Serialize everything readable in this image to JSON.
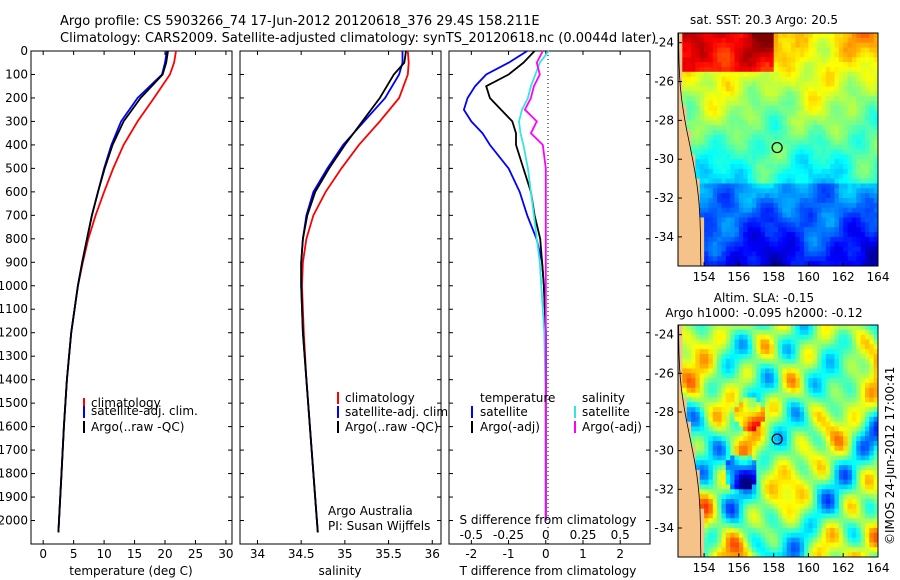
{
  "header": {
    "line1": "Argo profile: CS 5903266_74 17-Jun-2012 20120618_376 29.4S 158.211E",
    "line2": "Climatology: CARS2009. Satellite-adjusted climatology: synTS_20120618.nc (0.0044d later)"
  },
  "colors": {
    "climatology": "#ff0000",
    "satellite": "#0000ff",
    "argo": "#000000",
    "salinity_satellite": "#33e6e6",
    "salinity_argo": "#ff00ff"
  },
  "chart_data": [
    {
      "type": "line",
      "name": "temperature",
      "xlabel": "temperature (deg C)",
      "ylabel": "",
      "xlim": [
        -2,
        31
      ],
      "ylim": [
        2100,
        0
      ],
      "xticks": [
        "0",
        "5",
        "10",
        "15",
        "20",
        "25",
        "30"
      ],
      "yticks": [
        "0",
        "100",
        "200",
        "300",
        "400",
        "500",
        "600",
        "700",
        "800",
        "900",
        "1000",
        "1100",
        "1200",
        "1300",
        "1400",
        "1500",
        "1600",
        "1700",
        "1800",
        "1900",
        "2000"
      ],
      "legend": [
        "climatology",
        "satellite-adj. clim.",
        "Argo(..raw -QC)"
      ],
      "series": [
        {
          "name": "climatology",
          "depth": [
            0,
            50,
            100,
            200,
            300,
            400,
            500,
            600,
            700,
            800,
            900,
            1000,
            1200,
            1400,
            1600,
            1800,
            2000,
            2050
          ],
          "values": [
            21.8,
            21.5,
            20.8,
            18.2,
            15.5,
            13.2,
            11.5,
            10.0,
            8.6,
            7.4,
            6.5,
            5.7,
            4.6,
            3.9,
            3.4,
            3.0,
            2.6,
            2.5
          ]
        },
        {
          "name": "satellite-adj. clim.",
          "depth": [
            0,
            50,
            100,
            200,
            300,
            400,
            500,
            600,
            700,
            800,
            900,
            1000,
            1200,
            1400,
            1600,
            1800,
            2000,
            2050
          ],
          "values": [
            20.3,
            20.0,
            19.5,
            15.5,
            12.8,
            11.2,
            10.0,
            9.0,
            8.0,
            7.2,
            6.4,
            5.7,
            4.6,
            3.9,
            3.4,
            3.0,
            2.6,
            2.5
          ]
        },
        {
          "name": "Argo(..raw -QC)",
          "depth": [
            0,
            50,
            100,
            200,
            300,
            400,
            500,
            600,
            700,
            800,
            900,
            1000,
            1200,
            1400,
            1600,
            1800,
            2000,
            2050
          ],
          "values": [
            20.5,
            20.2,
            19.6,
            16.0,
            13.2,
            11.4,
            10.1,
            9.0,
            8.0,
            7.2,
            6.4,
            5.7,
            4.6,
            3.9,
            3.4,
            3.0,
            2.6,
            2.5
          ]
        }
      ]
    },
    {
      "type": "line",
      "name": "salinity",
      "xlabel": "salinity",
      "xlim": [
        33.8,
        36.1
      ],
      "ylim": [
        2100,
        0
      ],
      "xticks": [
        "34",
        "34.5",
        "35",
        "35.5",
        "36"
      ],
      "legend": [
        "climatology",
        "satellite-adj. clim.",
        "Argo(..raw -QC)"
      ],
      "annotation": [
        "Argo Australia",
        "PI: Susan Wijffels"
      ],
      "series": [
        {
          "name": "climatology",
          "depth": [
            0,
            50,
            100,
            200,
            300,
            400,
            500,
            600,
            700,
            800,
            900,
            1000,
            1200,
            1400,
            1600,
            1800,
            2000,
            2050
          ],
          "values": [
            35.72,
            35.73,
            35.72,
            35.62,
            35.4,
            35.16,
            34.96,
            34.78,
            34.64,
            34.56,
            34.52,
            34.51,
            34.53,
            34.56,
            34.6,
            34.64,
            34.68,
            34.69
          ]
        },
        {
          "name": "satellite-adj. clim.",
          "depth": [
            0,
            50,
            100,
            200,
            300,
            400,
            500,
            600,
            700,
            800,
            900,
            1000,
            1200,
            1400,
            1600,
            1800,
            2000,
            2050
          ],
          "values": [
            35.66,
            35.66,
            35.62,
            35.46,
            35.22,
            34.98,
            34.8,
            34.64,
            34.56,
            34.52,
            34.5,
            34.5,
            34.52,
            34.56,
            34.6,
            34.64,
            34.68,
            34.69
          ]
        },
        {
          "name": "Argo(..raw -QC)",
          "depth": [
            0,
            50,
            100,
            200,
            300,
            400,
            500,
            600,
            700,
            800,
            900,
            1000,
            1200,
            1400,
            1600,
            1800,
            2000,
            2050
          ],
          "values": [
            35.7,
            35.68,
            35.56,
            35.4,
            35.2,
            35.0,
            34.82,
            34.66,
            34.57,
            34.52,
            34.5,
            34.5,
            34.52,
            34.56,
            34.6,
            34.64,
            34.68,
            34.69
          ]
        }
      ]
    },
    {
      "type": "line",
      "name": "differences",
      "xlabel": "T difference from climatology",
      "xlabel2": "S difference from climatology",
      "xlim": [
        -2.6,
        2.8
      ],
      "ylim": [
        2100,
        0
      ],
      "xticks": [
        "-2",
        "-1",
        "0",
        "1",
        "2"
      ],
      "xticks2": [
        "-0.5",
        "-0.25",
        "0",
        "0.25",
        "0.5"
      ],
      "legend_titles": [
        "temperature",
        "salinity"
      ],
      "legend": [
        "satellite",
        "Argo(-adj)",
        "satellite",
        "Argo(-adj)"
      ],
      "series": [
        {
          "name": "temperature satellite",
          "depth": [
            0,
            50,
            100,
            150,
            200,
            250,
            300,
            350,
            400,
            500,
            600,
            700,
            800,
            900,
            1000,
            1200,
            1500,
            2000
          ],
          "values": [
            -0.5,
            -1.0,
            -1.6,
            -1.9,
            -2.1,
            -2.2,
            -2.0,
            -1.7,
            -1.5,
            -1.0,
            -0.7,
            -0.5,
            -0.25,
            -0.1,
            -0.05,
            0,
            0,
            0
          ]
        },
        {
          "name": "temperature Argo(-adj)",
          "depth": [
            0,
            50,
            100,
            150,
            200,
            250,
            300,
            350,
            400,
            500,
            600,
            700,
            800,
            900,
            1000,
            1200,
            1500,
            2000
          ],
          "values": [
            -0.3,
            -0.6,
            -1.0,
            -1.6,
            -1.5,
            -1.2,
            -0.9,
            -0.8,
            -0.8,
            -0.6,
            -0.4,
            -0.3,
            -0.15,
            -0.1,
            -0.05,
            0,
            0,
            0
          ]
        },
        {
          "name": "salinity satellite",
          "depth": [
            0,
            50,
            100,
            150,
            200,
            250,
            300,
            350,
            400,
            500,
            600,
            700,
            800,
            900,
            1000,
            1200,
            1500,
            2000
          ],
          "values": [
            0.02,
            -0.04,
            -0.07,
            -0.1,
            -0.12,
            -0.16,
            -0.18,
            -0.17,
            -0.15,
            -0.12,
            -0.1,
            -0.08,
            -0.06,
            -0.04,
            -0.03,
            -0.01,
            0,
            0.0
          ]
        },
        {
          "name": "salinity Argo(-adj)",
          "depth": [
            0,
            50,
            100,
            150,
            200,
            250,
            300,
            350,
            400,
            500,
            600,
            700,
            800,
            900,
            1000,
            1200,
            1500,
            2000
          ],
          "values": [
            -0.02,
            -0.06,
            -0.04,
            -0.08,
            -0.1,
            -0.14,
            -0.06,
            -0.1,
            -0.02,
            0.0,
            0.0,
            0.0,
            0.0,
            0.0,
            0.0,
            0.0,
            0.0,
            0.0
          ]
        }
      ]
    },
    {
      "type": "heatmap",
      "name": "sst-map",
      "title": "sat. SST: 20.3 Argo: 20.5",
      "xlim": [
        152.5,
        164
      ],
      "ylim": [
        -35.5,
        -23.5
      ],
      "xticks": [
        "154",
        "156",
        "158",
        "160",
        "162",
        "164"
      ],
      "yticks": [
        "-24",
        "-26",
        "-28",
        "-30",
        "-32",
        "-34"
      ],
      "marker": {
        "lon": 158.2,
        "lat": -29.4
      }
    },
    {
      "type": "heatmap",
      "name": "sla-map",
      "title1": "Altim. SLA: -0.15",
      "title2": "Argo h1000: -0.095 h2000: -0.12",
      "xlim": [
        152.5,
        164
      ],
      "ylim": [
        -35.5,
        -23.5
      ],
      "xticks": [
        "154",
        "156",
        "158",
        "160",
        "162",
        "164"
      ],
      "yticks": [
        "-24",
        "-26",
        "-28",
        "-30",
        "-32",
        "-34"
      ],
      "marker": {
        "lon": 158.2,
        "lat": -29.4
      },
      "side_label": "©IMOS 24-Jun-2012 17:00:41"
    }
  ]
}
